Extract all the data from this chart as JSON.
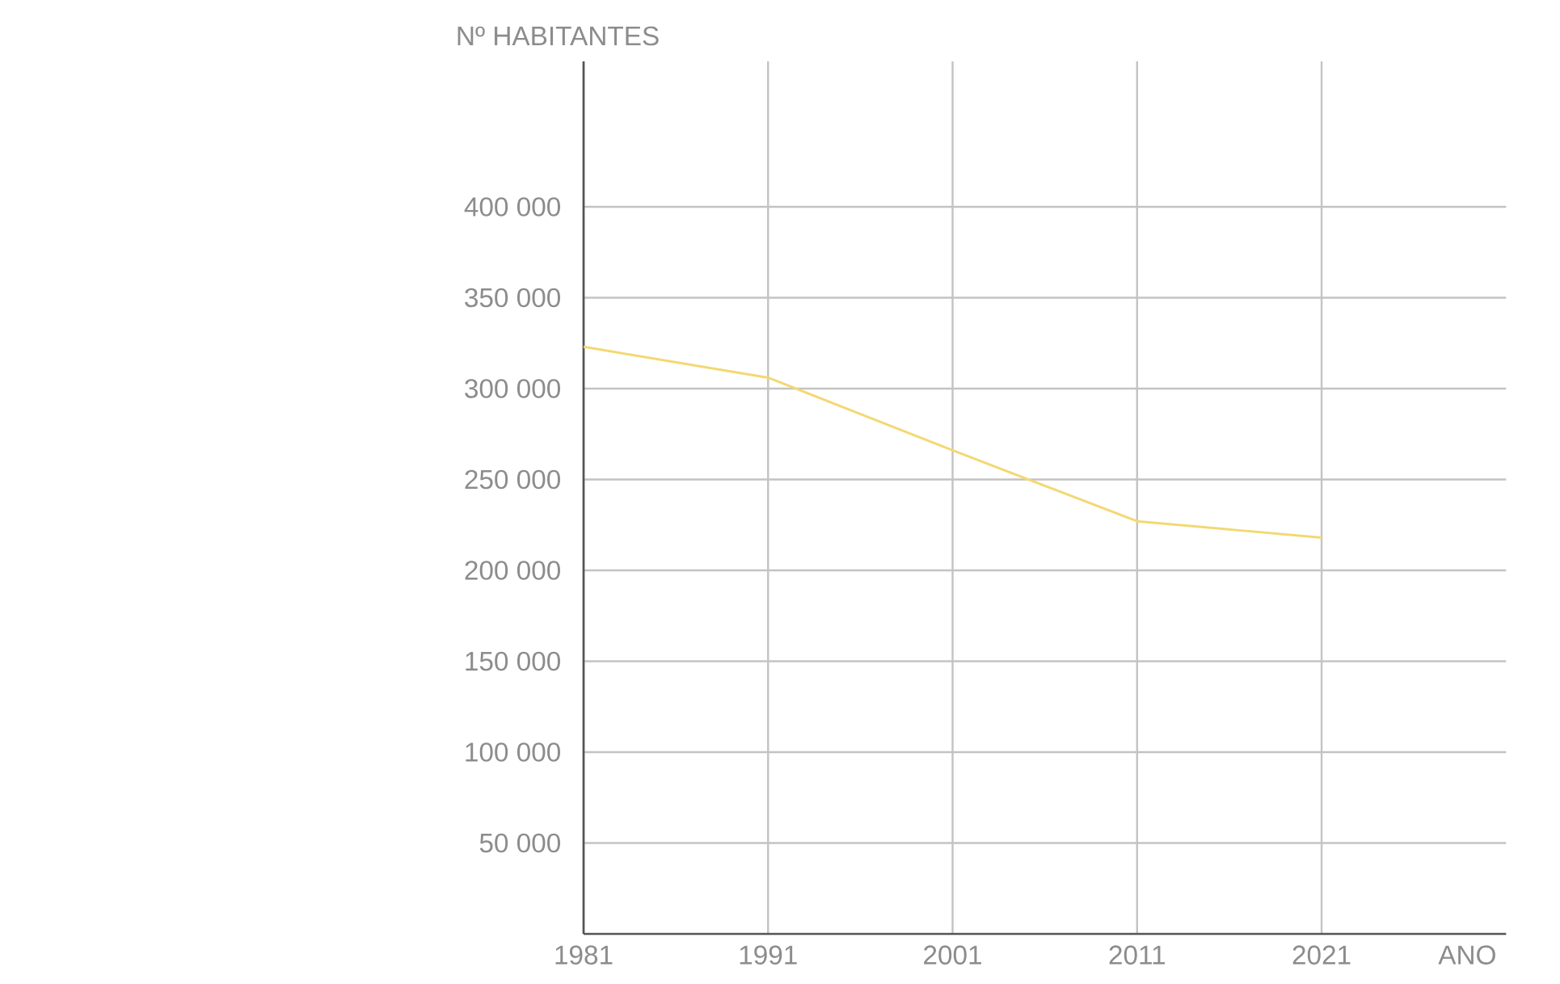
{
  "chart_data": {
    "type": "line",
    "xlabel": "ANO",
    "ylabel": "Nº HABITANTES",
    "x": [
      1981,
      1991,
      2001,
      2011,
      2021
    ],
    "series": [
      {
        "color": "#f3d873",
        "values": [
          323000,
          306000,
          266000,
          227000,
          218000
        ]
      }
    ],
    "xlim": [
      1981,
      2031
    ],
    "ylim": [
      0,
      480000
    ],
    "xticks": [
      1981,
      1991,
      2001,
      2011,
      2021
    ],
    "yticks": [
      {
        "value": 50000,
        "label": "50 000"
      },
      {
        "value": 100000,
        "label": "100 000"
      },
      {
        "value": 150000,
        "label": "150 000"
      },
      {
        "value": 200000,
        "label": "200 000"
      },
      {
        "value": 250000,
        "label": "250 000"
      },
      {
        "value": 300000,
        "label": "300 000"
      },
      {
        "value": 350000,
        "label": "350 000"
      },
      {
        "value": 400000,
        "label": "400 000"
      }
    ],
    "grid": true
  }
}
